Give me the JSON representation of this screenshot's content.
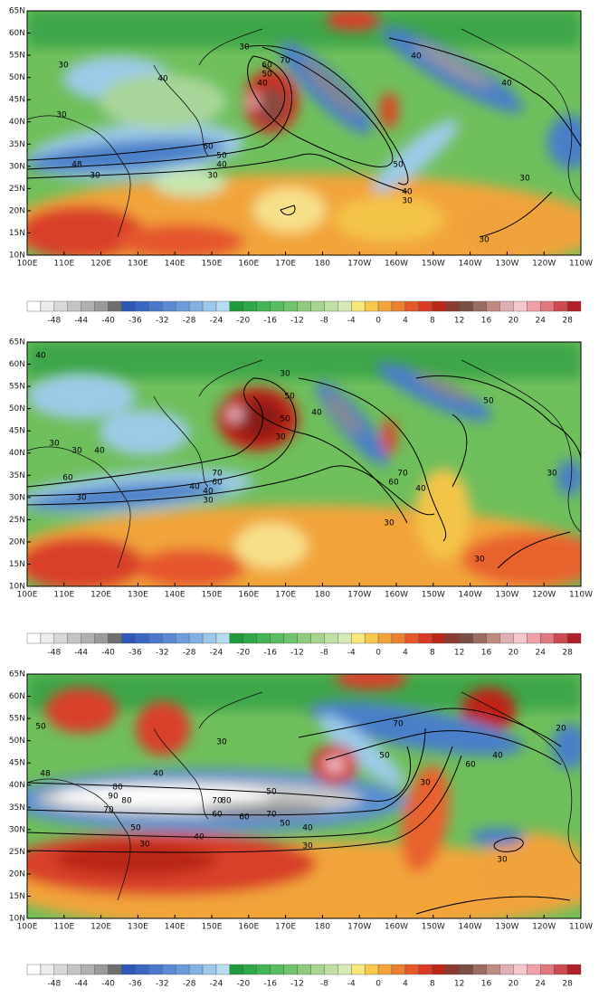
{
  "lat_labels": [
    "65N",
    "60N",
    "55N",
    "50N",
    "45N",
    "40N",
    "35N",
    "30N",
    "25N",
    "20N",
    "15N",
    "10N"
  ],
  "lon_labels": [
    "100E",
    "110E",
    "120E",
    "130E",
    "140E",
    "150E",
    "160E",
    "170E",
    "180",
    "170W",
    "160W",
    "150W",
    "140W",
    "130W",
    "120W",
    "110W"
  ],
  "colorbar_labels": [
    "-48",
    "-44",
    "-40",
    "-36",
    "-32",
    "-28",
    "-24",
    "-20",
    "-16",
    "-12",
    "-8",
    "-4",
    "0",
    "4",
    "8",
    "12",
    "16",
    "20",
    "24",
    "28"
  ],
  "panels": [
    {
      "contour_labels": [
        "30",
        "40",
        "30",
        "60",
        "50",
        "40",
        "30",
        "48",
        "30",
        "70",
        "60",
        "50",
        "40",
        "30",
        "50",
        "40",
        "30",
        "30",
        "40",
        "40",
        "30"
      ]
    },
    {
      "contour_labels": [
        "40",
        "30",
        "30",
        "40",
        "60",
        "40",
        "30",
        "50",
        "30",
        "50",
        "40",
        "30",
        "70",
        "60",
        "40",
        "30",
        "70",
        "60",
        "30",
        "40",
        "50",
        "30",
        "30"
      ]
    },
    {
      "contour_labels": [
        "50",
        "48",
        "80",
        "90",
        "80",
        "70",
        "50",
        "30",
        "40",
        "70",
        "60",
        "50",
        "30",
        "40",
        "80",
        "60",
        "70",
        "50",
        "40",
        "30",
        "70",
        "50",
        "60",
        "40",
        "30",
        "30",
        "20"
      ]
    }
  ]
}
